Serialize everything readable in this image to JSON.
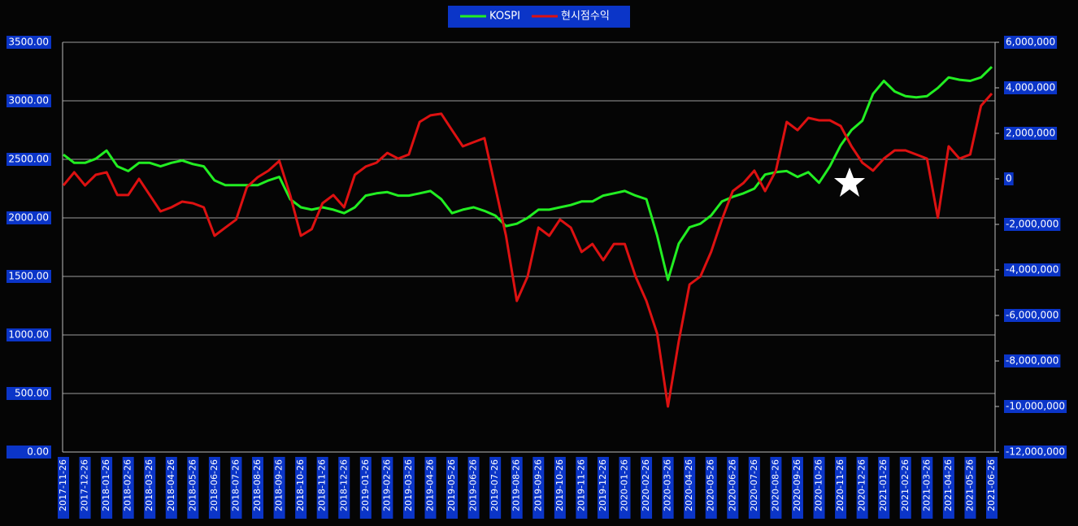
{
  "chart_data": {
    "type": "line",
    "categories": [
      "2017-11-26",
      null,
      "2017-12-26",
      null,
      "2018-01-26",
      null,
      "2018-02-26",
      null,
      "2018-03-26",
      null,
      "2018-04-26",
      null,
      "2018-05-26",
      null,
      "2018-06-26",
      null,
      "2018-07-26",
      null,
      "2018-08-26",
      null,
      "2018-09-26",
      null,
      "2018-10-26",
      null,
      "2018-11-26",
      null,
      "2018-12-26",
      null,
      "2019-01-26",
      null,
      "2019-02-26",
      null,
      "2019-03-26",
      null,
      "2019-04-26",
      null,
      "2019-05-26",
      null,
      "2019-06-26",
      null,
      "2019-07-26",
      null,
      "2019-08-26",
      null,
      "2019-09-26",
      null,
      "2019-10-26",
      null,
      "2019-11-26",
      null,
      "2019-12-26",
      null,
      "2020-01-26",
      null,
      "2020-02-26",
      null,
      "2020-03-26",
      null,
      "2020-04-26",
      null,
      "2020-05-26",
      null,
      "2020-06-26",
      null,
      "2020-07-26",
      null,
      "2020-08-26",
      null,
      "2020-09-26",
      null,
      "2020-10-26",
      null,
      "2020-11-26",
      null,
      "2020-12-26",
      null,
      "2021-01-26",
      null,
      "2021-02-26",
      null,
      "2021-03-26",
      null,
      "2021-04-26",
      null,
      "2021-05-26",
      null,
      "2021-06-26"
    ],
    "series": [
      {
        "name": "KOSPI",
        "color": "#22ee22",
        "axis": "y",
        "values": [
          2540,
          2470,
          2470,
          2505,
          2575,
          2440,
          2400,
          2470,
          2470,
          2440,
          2470,
          2490,
          2460,
          2440,
          2320,
          2280,
          2280,
          2280,
          2280,
          2320,
          2350,
          2160,
          2090,
          2070,
          2090,
          2070,
          2040,
          2090,
          2190,
          2210,
          2220,
          2190,
          2190,
          2210,
          2230,
          2160,
          2040,
          2070,
          2090,
          2060,
          2020,
          1930,
          1950,
          2000,
          2070,
          2070,
          2090,
          2110,
          2140,
          2140,
          2190,
          2210,
          2230,
          2190,
          2160,
          1850,
          1470,
          1780,
          1920,
          1950,
          2020,
          2140,
          2180,
          2210,
          2250,
          2370,
          2390,
          2400,
          2350,
          2390,
          2300,
          2440,
          2620,
          2750,
          2830,
          3060,
          3170,
          3080,
          3040,
          3030,
          3040,
          3110,
          3200,
          3180,
          3170,
          3200,
          3290
        ]
      },
      {
        "name": "현시점수익",
        "color": "#dd1111",
        "axis": "y2",
        "values": [
          -290000,
          290000,
          -290000,
          180000,
          290000,
          -710000,
          -710000,
          0,
          -710000,
          -1430000,
          -1250000,
          -1000000,
          -1070000,
          -1250000,
          -2500000,
          -2140000,
          -1790000,
          -360000,
          70000,
          360000,
          790000,
          -710000,
          -2500000,
          -2210000,
          -1070000,
          -710000,
          -1250000,
          180000,
          540000,
          710000,
          1140000,
          890000,
          1070000,
          2500000,
          2790000,
          2860000,
          2140000,
          1430000,
          1610000,
          1790000,
          -360000,
          -2500000,
          -5360000,
          -4290000,
          -2140000,
          -2500000,
          -1790000,
          -2140000,
          -3210000,
          -2860000,
          -3570000,
          -2860000,
          -2860000,
          -4290000,
          -5360000,
          -6790000,
          -10000000,
          -7140000,
          -4640000,
          -4290000,
          -3210000,
          -1790000,
          -540000,
          -180000,
          360000,
          -540000,
          360000,
          2500000,
          2140000,
          2680000,
          2570000,
          2570000,
          2320000,
          1430000,
          710000,
          360000,
          890000,
          1250000,
          1250000,
          1070000,
          890000,
          -1710000,
          1430000,
          890000,
          1070000,
          3210000,
          3750000
        ]
      }
    ],
    "ylim": [
      0,
      3500
    ],
    "yticks": [
      {
        "value": 0,
        "label": "0.00"
      },
      {
        "value": 500,
        "label": "500.00"
      },
      {
        "value": 1000,
        "label": "1000.00"
      },
      {
        "value": 1500,
        "label": "1500.00"
      },
      {
        "value": 2000,
        "label": "2000.00"
      },
      {
        "value": 2500,
        "label": "2500.00"
      },
      {
        "value": 3000,
        "label": "3000.00"
      },
      {
        "value": 3500,
        "label": "3500.00"
      }
    ],
    "y2lim": [
      -12000000,
      6000000
    ],
    "y2ticks": [
      {
        "value": -12000000,
        "label": "-12,000,000"
      },
      {
        "value": -10000000,
        "label": "-10,000,000"
      },
      {
        "value": -8000000,
        "label": "-8,000,000"
      },
      {
        "value": -6000000,
        "label": "-6,000,000"
      },
      {
        "value": -4000000,
        "label": "-4,000,000"
      },
      {
        "value": -2000000,
        "label": "-2,000,000"
      },
      {
        "value": 0,
        "label": "0"
      },
      {
        "value": 2000000,
        "label": "2,000,000"
      },
      {
        "value": 4000000,
        "label": "4,000,000"
      },
      {
        "value": 6000000,
        "label": "6,000,000"
      }
    ],
    "grid": true,
    "legend": "top"
  }
}
